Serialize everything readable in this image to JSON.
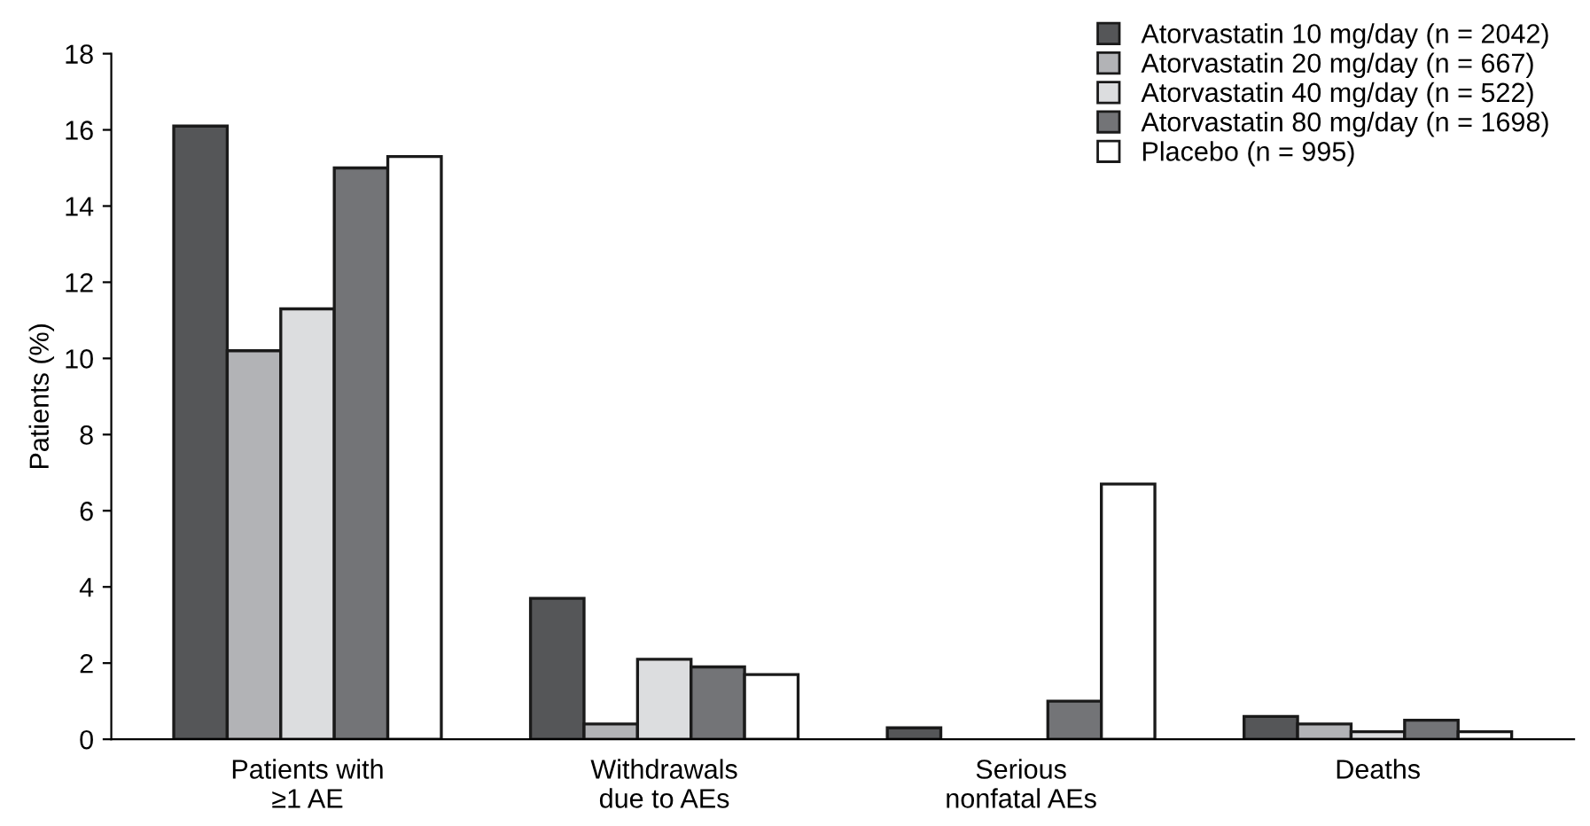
{
  "chart_data": {
    "type": "bar",
    "ylabel": "Patients (%)",
    "categories": [
      "Patients with\n≥1 AE",
      "Withdrawals\ndue to AEs",
      "Serious\nnonfatal AEs",
      "Deaths"
    ],
    "series": [
      {
        "name": "Atorvastatin 10 mg/day (n = 2042)",
        "color": "#555658",
        "values": [
          16.1,
          3.7,
          0.3,
          0.6
        ]
      },
      {
        "name": "Atorvastatin 20 mg/day (n = 667)",
        "color": "#b2b3b6",
        "values": [
          10.2,
          0.4,
          0,
          0.4
        ]
      },
      {
        "name": "Atorvastatin 40 mg/day (n = 522)",
        "color": "#dcdddf",
        "values": [
          11.3,
          2.1,
          0,
          0.2
        ]
      },
      {
        "name": "Atorvastatin 80 mg/day (n = 1698)",
        "color": "#737477",
        "values": [
          15.0,
          1.9,
          1.0,
          0.5
        ]
      },
      {
        "name": "Placebo (n = 995)",
        "color": "#ffffff",
        "values": [
          15.3,
          1.7,
          6.7,
          0.2
        ]
      }
    ],
    "ylim": [
      0,
      18
    ],
    "yticks": [
      0,
      2,
      4,
      6,
      8,
      10,
      12,
      14,
      16,
      18
    ],
    "grid": false,
    "legend": "top right"
  }
}
